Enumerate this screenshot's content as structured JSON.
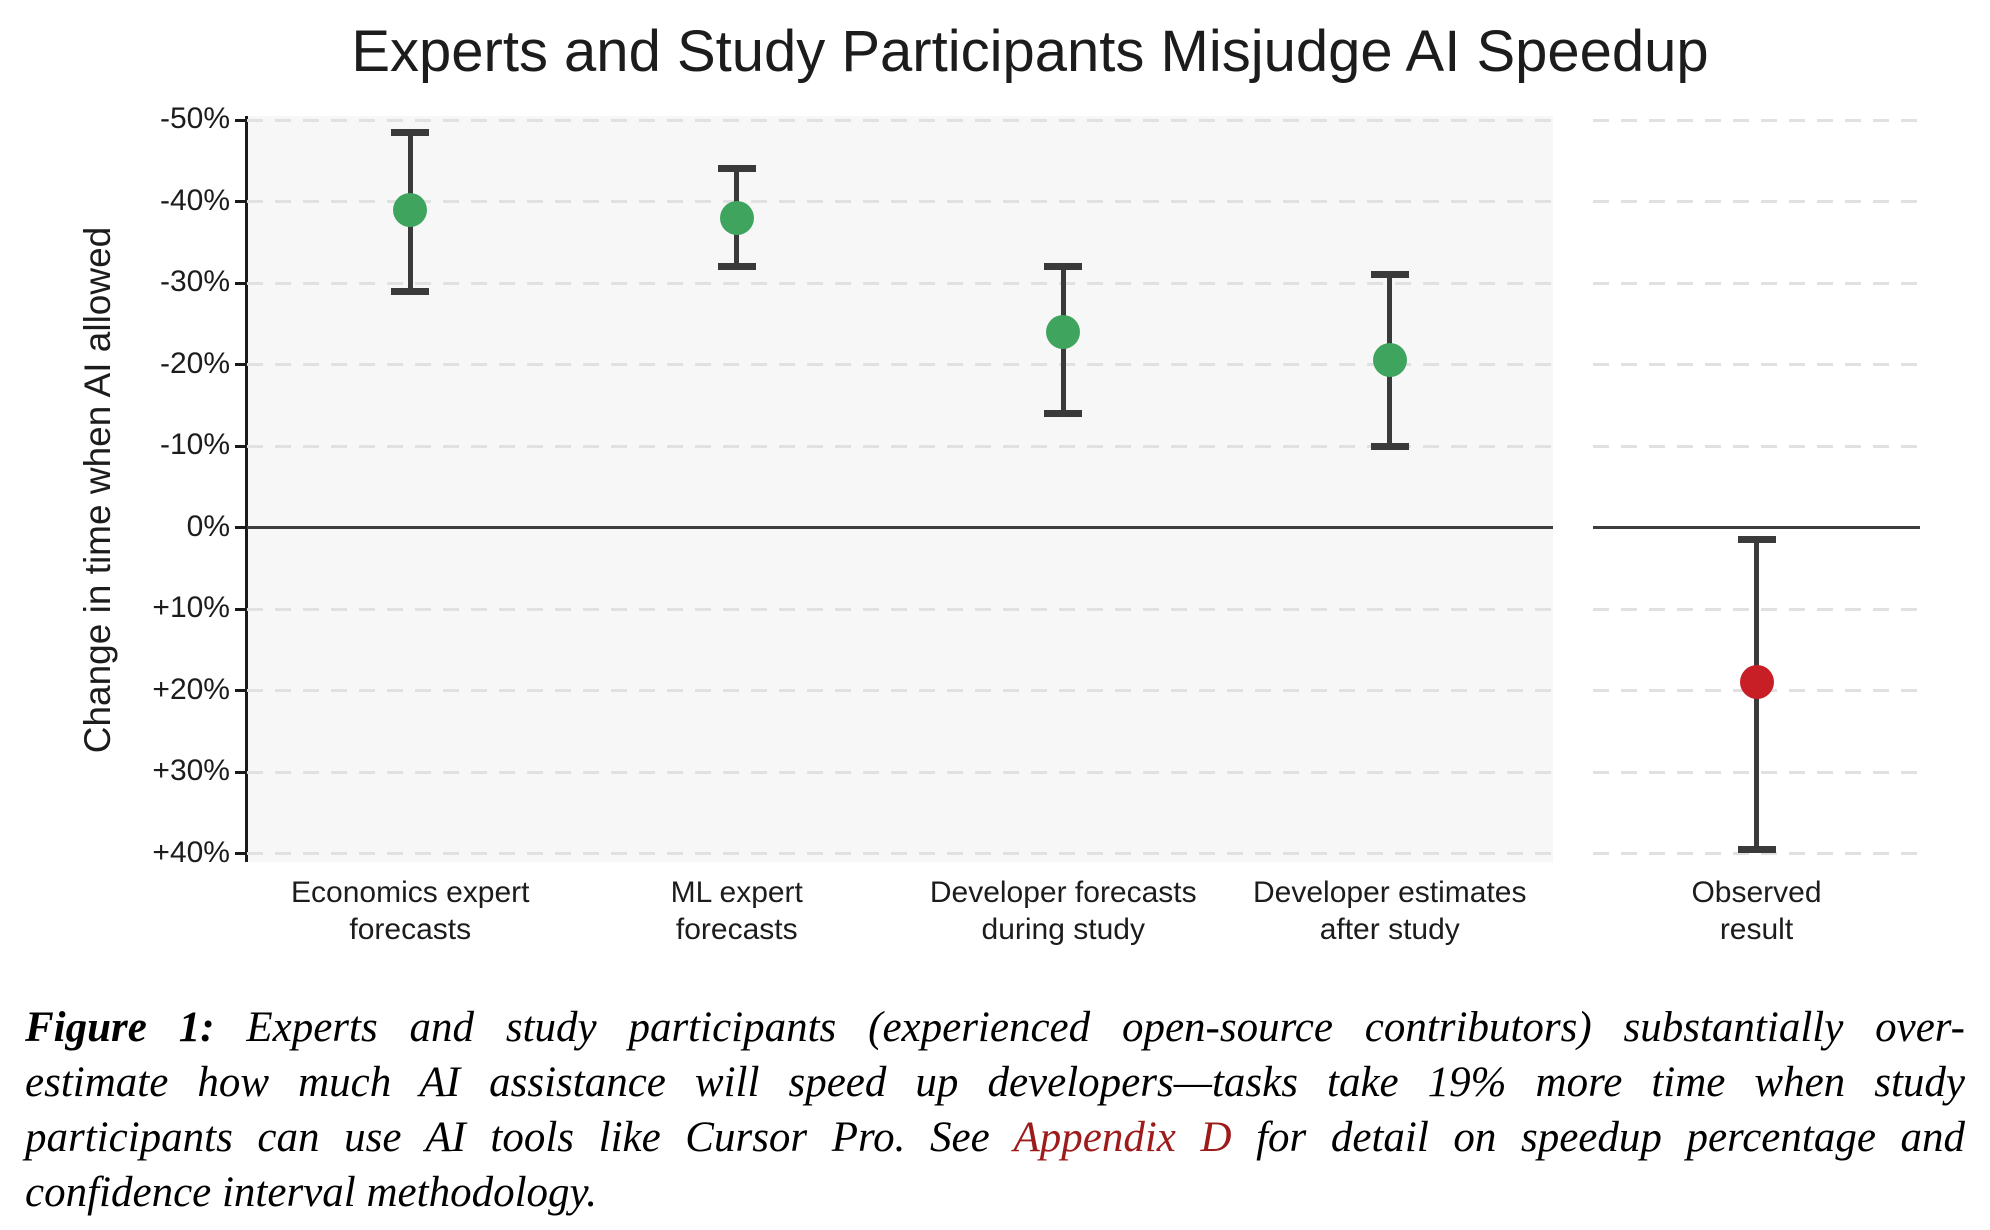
{
  "figure": {
    "title": "Experts and Study Participants Misjudge AI Speedup",
    "y_axis_label": "Change in time when AI allowed"
  },
  "chart_data": {
    "type": "scatter",
    "title": "Experts and Study Participants Misjudge AI Speedup",
    "ylabel": "Change in time when AI allowed",
    "xlabel": "",
    "y_axis": {
      "tick_labels": [
        "-50%",
        "-40%",
        "-30%",
        "-20%",
        "-10%",
        "0%",
        "+10%",
        "+20%",
        "+30%",
        "+40%"
      ],
      "tick_values": [
        -50,
        -40,
        -30,
        -20,
        -10,
        0,
        10,
        20,
        30,
        40
      ],
      "inverted": true,
      "unit": "percent change in completion time when AI allowed",
      "zero_line": true,
      "grid": "dashed horizontal"
    },
    "points": [
      {
        "category": [
          "Economics expert",
          "forecasts"
        ],
        "value": -39,
        "ci": [
          -48.5,
          -29
        ],
        "color": "#3fa55e",
        "panel": "main"
      },
      {
        "category": [
          "ML expert",
          "forecasts"
        ],
        "value": -38,
        "ci": [
          -44,
          -32
        ],
        "color": "#3fa55e",
        "panel": "main"
      },
      {
        "category": [
          "Developer forecasts",
          "during study"
        ],
        "value": -24,
        "ci": [
          -32,
          -14
        ],
        "color": "#3fa55e",
        "panel": "main"
      },
      {
        "category": [
          "Developer estimates",
          "after study"
        ],
        "value": -20.5,
        "ci": [
          -31,
          -10
        ],
        "color": "#3fa55e",
        "panel": "main"
      },
      {
        "category": [
          "Observed",
          "result"
        ],
        "value": 19,
        "ci": [
          1.5,
          39.5
        ],
        "color": "#c81f26",
        "panel": "right"
      }
    ],
    "legend": [],
    "colors": {
      "forecast_green": "#3fa55e",
      "observed_red": "#c81f26",
      "error_bar": "#3a3a3a",
      "main_panel_bg": "#f7f7f7",
      "gridline": "#e1e1e1",
      "zero_line": "#3d3d3d"
    }
  },
  "caption": {
    "label": "Figure 1:",
    "line1_rest": " Experts and study participants (experienced open-source contributors) substantially over-",
    "line2": "estimate how much AI assistance will speed up developers—tasks take 19% more time when study",
    "line3_before_link": "participants can use AI tools like Cursor Pro. See ",
    "link_text": "Appendix D",
    "line3_after_link": " for detail on speedup percentage and",
    "line4": "confidence interval methodology.",
    "link_color": "#9e1b1b"
  }
}
